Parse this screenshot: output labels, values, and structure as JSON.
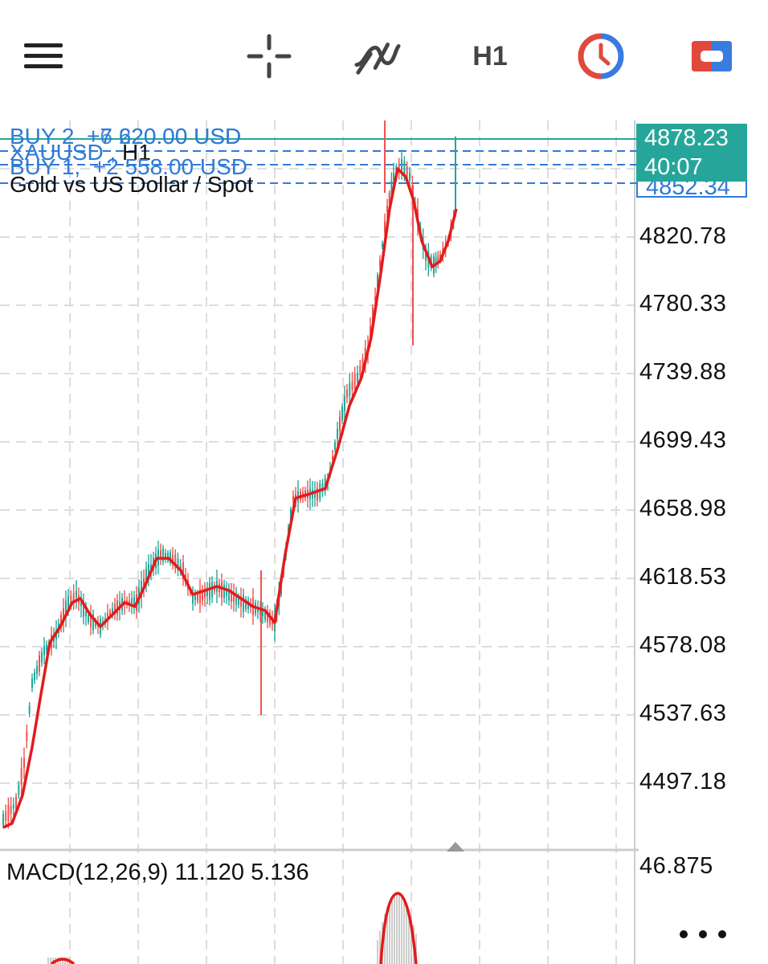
{
  "toolbar": {
    "timeframe": "H1",
    "icons": [
      "menu-icon",
      "crosshair-icon",
      "indicators-icon",
      "timeframe-label",
      "clock-icon",
      "trade-icon"
    ],
    "colors": {
      "clock_red": "#e0493b",
      "clock_blue": "#3a7be0",
      "trade_red": "#e0493b",
      "trade_blue": "#3a7be0"
    }
  },
  "chart": {
    "symbol": "XAUUSD",
    "symbol_timeframe": "H1",
    "description": "Gold vs US Dollar / Spot",
    "orders": [
      {
        "label": "BUY 2",
        "profit": "+7 620.00 USD"
      },
      {
        "label": "BUY 2",
        "profit": "+6 220.00 USD"
      },
      {
        "label": "BUY 1",
        "profit": "+2 558.00 USD"
      }
    ],
    "current_price": "4878.23",
    "countdown": "40:07",
    "order_price_partial": "4852.34",
    "price_axis": [
      "4820.78",
      "4780.33",
      "4739.88",
      "4699.43",
      "4658.98",
      "4618.53",
      "4578.08",
      "4537.63",
      "4497.18"
    ],
    "colors": {
      "bull": "#26a69a",
      "bear": "#ef5350",
      "ma": "#e21b1b",
      "order_line": "#2f7bd6"
    }
  },
  "macd": {
    "label": "MACD(12,26,9) 11.120 5.136",
    "axis_top": "46.875"
  }
}
